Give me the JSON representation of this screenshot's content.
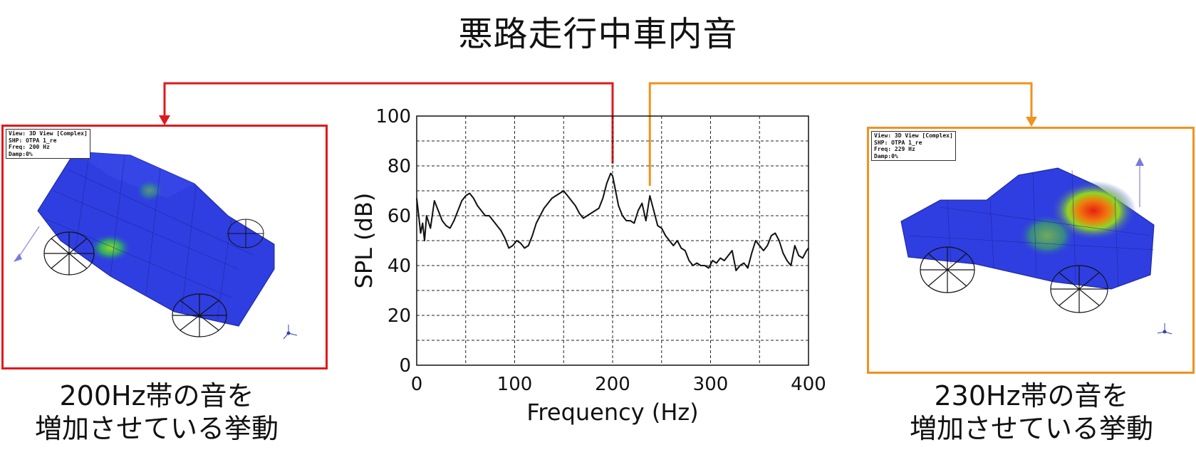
{
  "title": "悪路走行中車内音",
  "left_panel": {
    "info": [
      "View: 3D View [Complex]",
      "SHP: OTPA 1_re",
      "Freq: 200 Hz",
      "Damp:0%"
    ],
    "caption_line1": "200Hz帯の音を",
    "caption_line2": "増加させている挙動",
    "border_color": "#e0191b"
  },
  "right_panel": {
    "info": [
      "View: 3D View [Complex]",
      "SHP: OTPA 1_re",
      "Freq: 229 Hz",
      "Damp:0%"
    ],
    "caption_line1": "230Hz帯の音を",
    "caption_line2": "増加させている挙動",
    "border_color": "#f0921e"
  },
  "chart_data": {
    "type": "line",
    "xlabel": "Frequency (Hz)",
    "ylabel": "SPL (dB)",
    "xlim": [
      0,
      400
    ],
    "ylim": [
      0,
      100
    ],
    "xticks": [
      0,
      100,
      200,
      300,
      400
    ],
    "yticks": [
      0,
      20,
      40,
      60,
      80,
      100
    ],
    "grid": true,
    "line_color": "#111111",
    "series": [
      {
        "x": [
          0,
          2,
          4,
          6,
          8,
          10,
          14,
          18,
          22,
          26,
          30,
          34,
          38,
          42,
          46,
          50,
          54,
          58,
          62,
          66,
          70,
          74,
          78,
          82,
          86,
          90,
          94,
          98,
          102,
          106,
          110,
          114,
          118,
          122,
          126,
          130,
          134,
          138,
          142,
          146,
          150,
          154,
          158,
          162,
          166,
          170,
          174,
          178,
          182,
          186,
          190,
          194,
          198,
          200,
          202,
          206,
          210,
          214,
          218,
          222,
          226,
          230,
          234,
          238,
          242,
          246,
          250,
          254,
          258,
          262,
          266,
          270,
          274,
          278,
          282,
          286,
          290,
          294,
          298,
          302,
          306,
          310,
          314,
          318,
          322,
          326,
          330,
          334,
          338,
          342,
          346,
          350,
          354,
          358,
          362,
          366,
          370,
          374,
          378,
          382,
          386,
          390,
          394,
          398,
          400
        ],
        "y": [
          67,
          60,
          53,
          57,
          50,
          60,
          55,
          66,
          62,
          58,
          56,
          55,
          58,
          62,
          66,
          68,
          69,
          67,
          64,
          62,
          60,
          60,
          58,
          56,
          54,
          51,
          47,
          48,
          50,
          49,
          47,
          48,
          52,
          57,
          60,
          63,
          65,
          67,
          68,
          69,
          70,
          68,
          66,
          64,
          61,
          59,
          60,
          61,
          62,
          63,
          67,
          73,
          77,
          76,
          72,
          64,
          60,
          58,
          58,
          57,
          62,
          65,
          58,
          68,
          62,
          56,
          55,
          52,
          50,
          48,
          50,
          47,
          46,
          42,
          40,
          41,
          40,
          40,
          39,
          42,
          41,
          43,
          42,
          44,
          46,
          38,
          40,
          41,
          39,
          45,
          50,
          48,
          46,
          48,
          52,
          53,
          50,
          45,
          42,
          40,
          48,
          44,
          43,
          46,
          47
        ]
      }
    ],
    "markers": [
      {
        "color": "#e0191b",
        "x": 200,
        "y": 81
      },
      {
        "color": "#f0921e",
        "x": 238,
        "y": 72
      }
    ]
  }
}
